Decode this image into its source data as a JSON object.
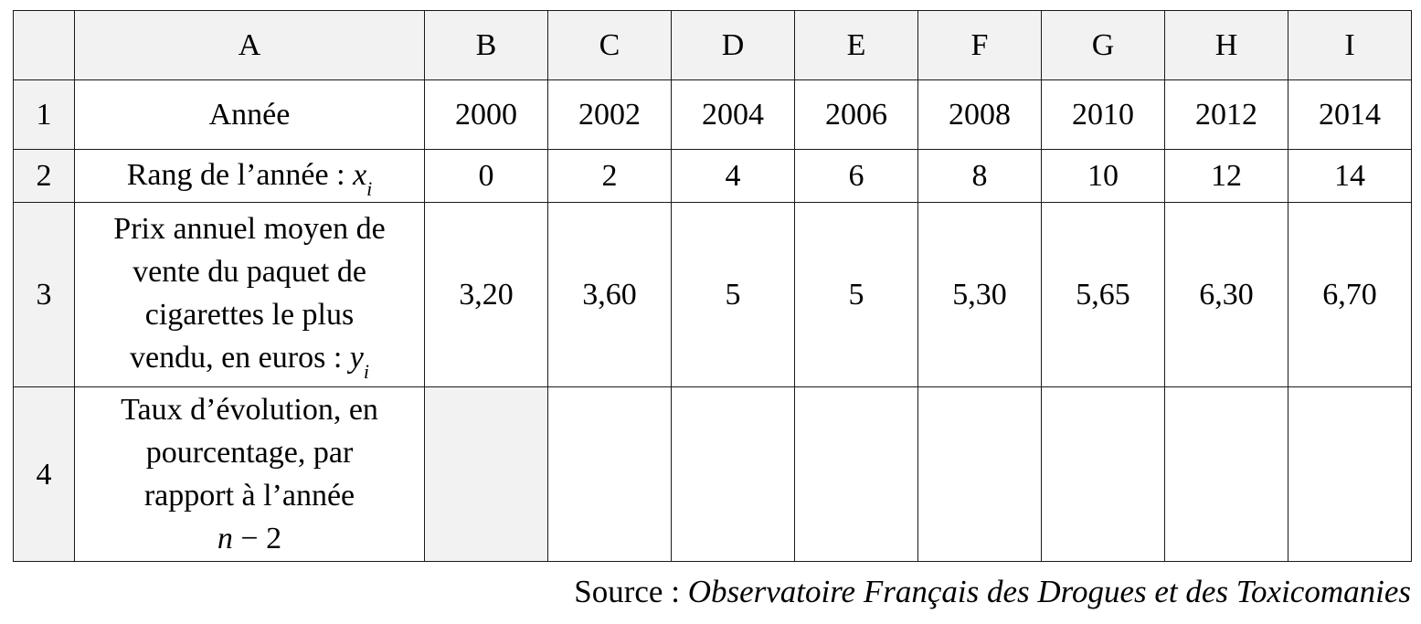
{
  "columns": [
    "A",
    "B",
    "C",
    "D",
    "E",
    "F",
    "G",
    "H",
    "I"
  ],
  "row_numbers": [
    "1",
    "2",
    "3",
    "4"
  ],
  "row1": {
    "label": "Année",
    "values": [
      "2000",
      "2002",
      "2004",
      "2006",
      "2008",
      "2010",
      "2012",
      "2014"
    ]
  },
  "row2": {
    "label": "Rang de l’année :",
    "var": "x",
    "sub": "i",
    "values": [
      "0",
      "2",
      "4",
      "6",
      "8",
      "10",
      "12",
      "14"
    ]
  },
  "row3": {
    "label_lines": [
      "Prix annuel moyen de",
      "vente du paquet de",
      "cigarettes le plus",
      "vendu, en euros :"
    ],
    "var": "y",
    "sub": "i",
    "values": [
      "3,20",
      "3,60",
      "5",
      "5",
      "5,30",
      "5,65",
      "6,30",
      "6,70"
    ]
  },
  "row4": {
    "label_lines": [
      "Taux d’évolution, en",
      "pourcentage, par",
      "rapport à l’année"
    ],
    "expr_var": "n",
    "expr_rest": " − 2",
    "values": [
      "",
      "",
      "",
      "",
      "",
      "",
      "",
      ""
    ]
  },
  "source": {
    "prefix": "Source : ",
    "title": "Observatoire Français des Drogues et des Toxicomanies"
  }
}
